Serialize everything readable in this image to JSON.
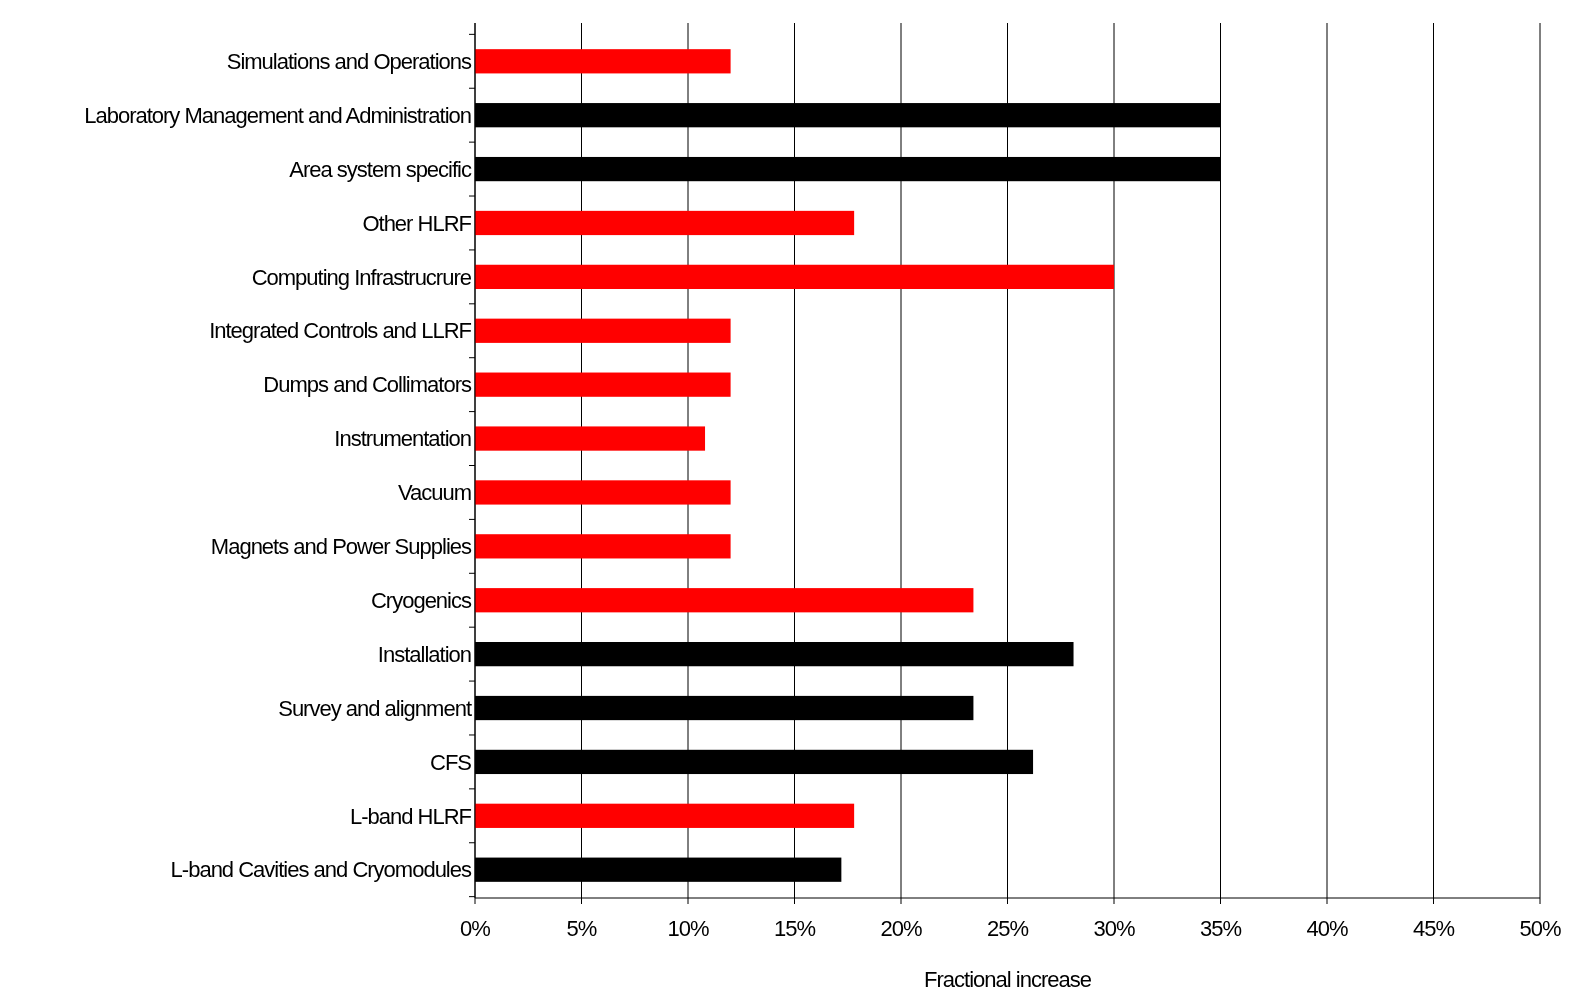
{
  "chart_data": {
    "type": "bar",
    "orientation": "horizontal",
    "xlabel": "Fractional increase",
    "categories": [
      "Simulations and Operations",
      "Laboratory Management and Administration",
      "Area system specific",
      "Other HLRF",
      "Computing Infrastrucrure",
      "Integrated Controls and LLRF",
      "Dumps and Collimators",
      "Instrumentation",
      "Vacuum",
      "Magnets and Power Supplies",
      "Cryogenics",
      "Installation",
      "Survey and alignment",
      "CFS",
      "L-band HLRF",
      "L-band Cavities and Cryomodules"
    ],
    "values": [
      12,
      35,
      35,
      17.8,
      30,
      12,
      12,
      10.8,
      12,
      12,
      23.4,
      28.1,
      23.4,
      26.2,
      17.8,
      17.2
    ],
    "colors": [
      "#ff0000",
      "#000000",
      "#000000",
      "#ff0000",
      "#ff0000",
      "#ff0000",
      "#ff0000",
      "#ff0000",
      "#ff0000",
      "#ff0000",
      "#ff0000",
      "#000000",
      "#000000",
      "#000000",
      "#ff0000",
      "#000000"
    ],
    "xlim": [
      0,
      50
    ],
    "xticks": [
      {
        "value": 0,
        "label": "0%"
      },
      {
        "value": 5,
        "label": "5%"
      },
      {
        "value": 10,
        "label": "10%"
      },
      {
        "value": 15,
        "label": "15%"
      },
      {
        "value": 20,
        "label": "20%"
      },
      {
        "value": 25,
        "label": "25%"
      },
      {
        "value": 30,
        "label": "30%"
      },
      {
        "value": 35,
        "label": "35%"
      },
      {
        "value": 40,
        "label": "40%"
      },
      {
        "value": 45,
        "label": "45%"
      },
      {
        "value": 50,
        "label": "50%"
      }
    ],
    "grid": "x"
  }
}
